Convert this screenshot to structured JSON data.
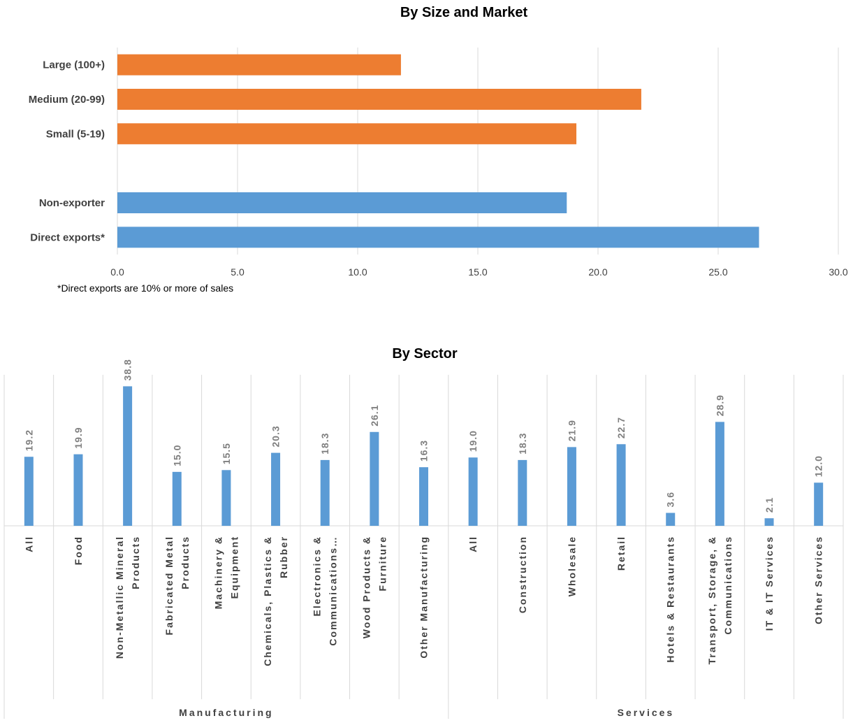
{
  "chart_data": [
    {
      "type": "bar",
      "orientation": "horizontal",
      "title": "By Size and Market",
      "categories": [
        "Large (100+)",
        "Medium (20-99)",
        "Small (5-19)",
        "",
        "Non-exporter",
        "Direct exports*"
      ],
      "values": [
        11.8,
        21.8,
        19.1,
        null,
        18.7,
        26.7
      ],
      "bar_colors": [
        "#ed7d31",
        "#ed7d31",
        "#ed7d31",
        null,
        "#5b9bd5",
        "#5b9bd5"
      ],
      "xlim": [
        0,
        30
      ],
      "xticks": [
        "0.0",
        "5.0",
        "10.0",
        "15.0",
        "20.0",
        "25.0",
        "30.0"
      ],
      "grid": true,
      "note": "*Direct exports are 10% or more of sales"
    },
    {
      "type": "bar",
      "orientation": "vertical",
      "title": "By Sector",
      "color": "#5b9bd5",
      "ylim": [
        0,
        42
      ],
      "groups": [
        {
          "name": "Manufacturing",
          "categories": [
            [
              "All"
            ],
            [
              "Food"
            ],
            [
              "Non-Metallic Mineral",
              "Products"
            ],
            [
              "Fabricated Metal",
              "Products"
            ],
            [
              "Machinery &",
              "Equipment"
            ],
            [
              "Chemicals, Plastics &",
              "Rubber"
            ],
            [
              "Electronics &",
              "Communications…"
            ],
            [
              "Wood Products &",
              "Furniture"
            ],
            [
              "Other Manufacturing"
            ]
          ],
          "values": [
            19.2,
            19.9,
            38.8,
            15.0,
            15.5,
            20.3,
            18.3,
            26.1,
            16.3
          ],
          "labels": [
            "19.2",
            "19.9",
            "38.8",
            "15.0",
            "15.5",
            "20.3",
            "18.3",
            "26.1",
            "16.3"
          ]
        },
        {
          "name": "Services",
          "categories": [
            [
              "All"
            ],
            [
              "Construction"
            ],
            [
              "Wholesale"
            ],
            [
              "Retail"
            ],
            [
              "Hotels & Restaurants"
            ],
            [
              "Transport, Storage, &",
              "Communications"
            ],
            [
              "IT & IT Services"
            ],
            [
              "Other Services"
            ]
          ],
          "values": [
            19.0,
            18.3,
            21.9,
            22.7,
            3.6,
            28.9,
            2.1,
            12.0
          ],
          "labels": [
            "19.0",
            "18.3",
            "21.9",
            "22.7",
            "3.6",
            "28.9",
            "2.1",
            "12.0"
          ]
        }
      ]
    }
  ]
}
